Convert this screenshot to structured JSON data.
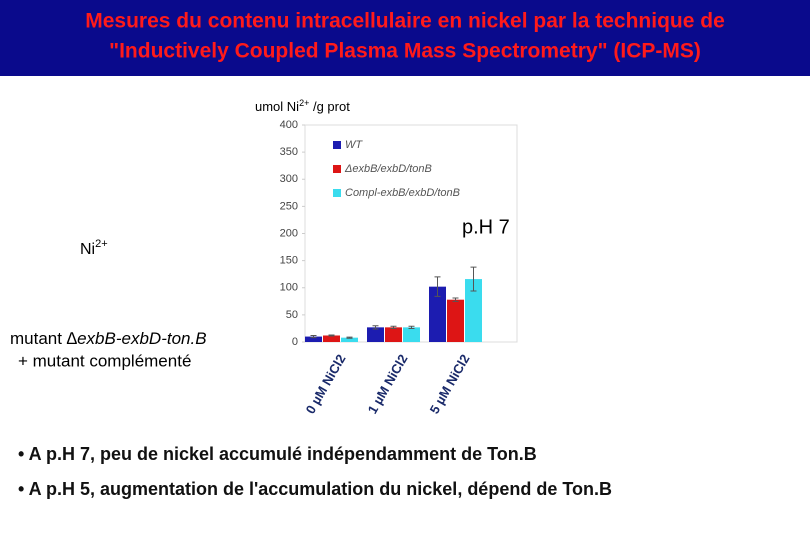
{
  "header": {
    "title_lines": [
      "Mesures du contenu intracellulaire en nickel par la technique de",
      "\"Inductively Coupled Plasma Mass Spectrometry\" (ICP-MS)"
    ]
  },
  "side_labels": {
    "ion": {
      "text": "Ni",
      "sup": "2+"
    },
    "mutant_prefix": "mutant ",
    "mutant_italic": "∆exbB-exbD-ton.B",
    "complemented": "+ mutant complémenté",
    "ph": "p.H 7"
  },
  "chart_data": {
    "type": "bar",
    "y_label": {
      "text": "umol Ni",
      "sup": "2+",
      "rest": " /g prot"
    },
    "categories": [
      "0 µM NiCl2",
      "1 µM NiCl2",
      "5 µM NiCl2"
    ],
    "series": [
      {
        "name": "WT",
        "color": "#1c1cb0",
        "values": [
          10,
          27,
          102
        ],
        "errors": [
          2,
          3,
          18
        ]
      },
      {
        "name": "ΔexbB/exbD/tonB",
        "color": "#dd1515",
        "values": [
          12,
          27,
          78
        ],
        "errors": [
          1,
          2,
          3
        ]
      },
      {
        "name": "Compl-exbB/exbD/tonB",
        "color": "#3adcee",
        "values": [
          8,
          27,
          116
        ],
        "errors": [
          1,
          2,
          22
        ]
      }
    ],
    "ylim": [
      0,
      400
    ],
    "yticks": [
      0,
      50,
      100,
      150,
      200,
      250,
      300,
      350,
      400
    ],
    "legend": "top-left"
  },
  "bullets": [
    "• A p.H 7, peu de nickel accumulé indépendamment de Ton.B",
    "• A p.H 5, augmentation de l'accumulation du nickel, dépend de Ton.B"
  ]
}
